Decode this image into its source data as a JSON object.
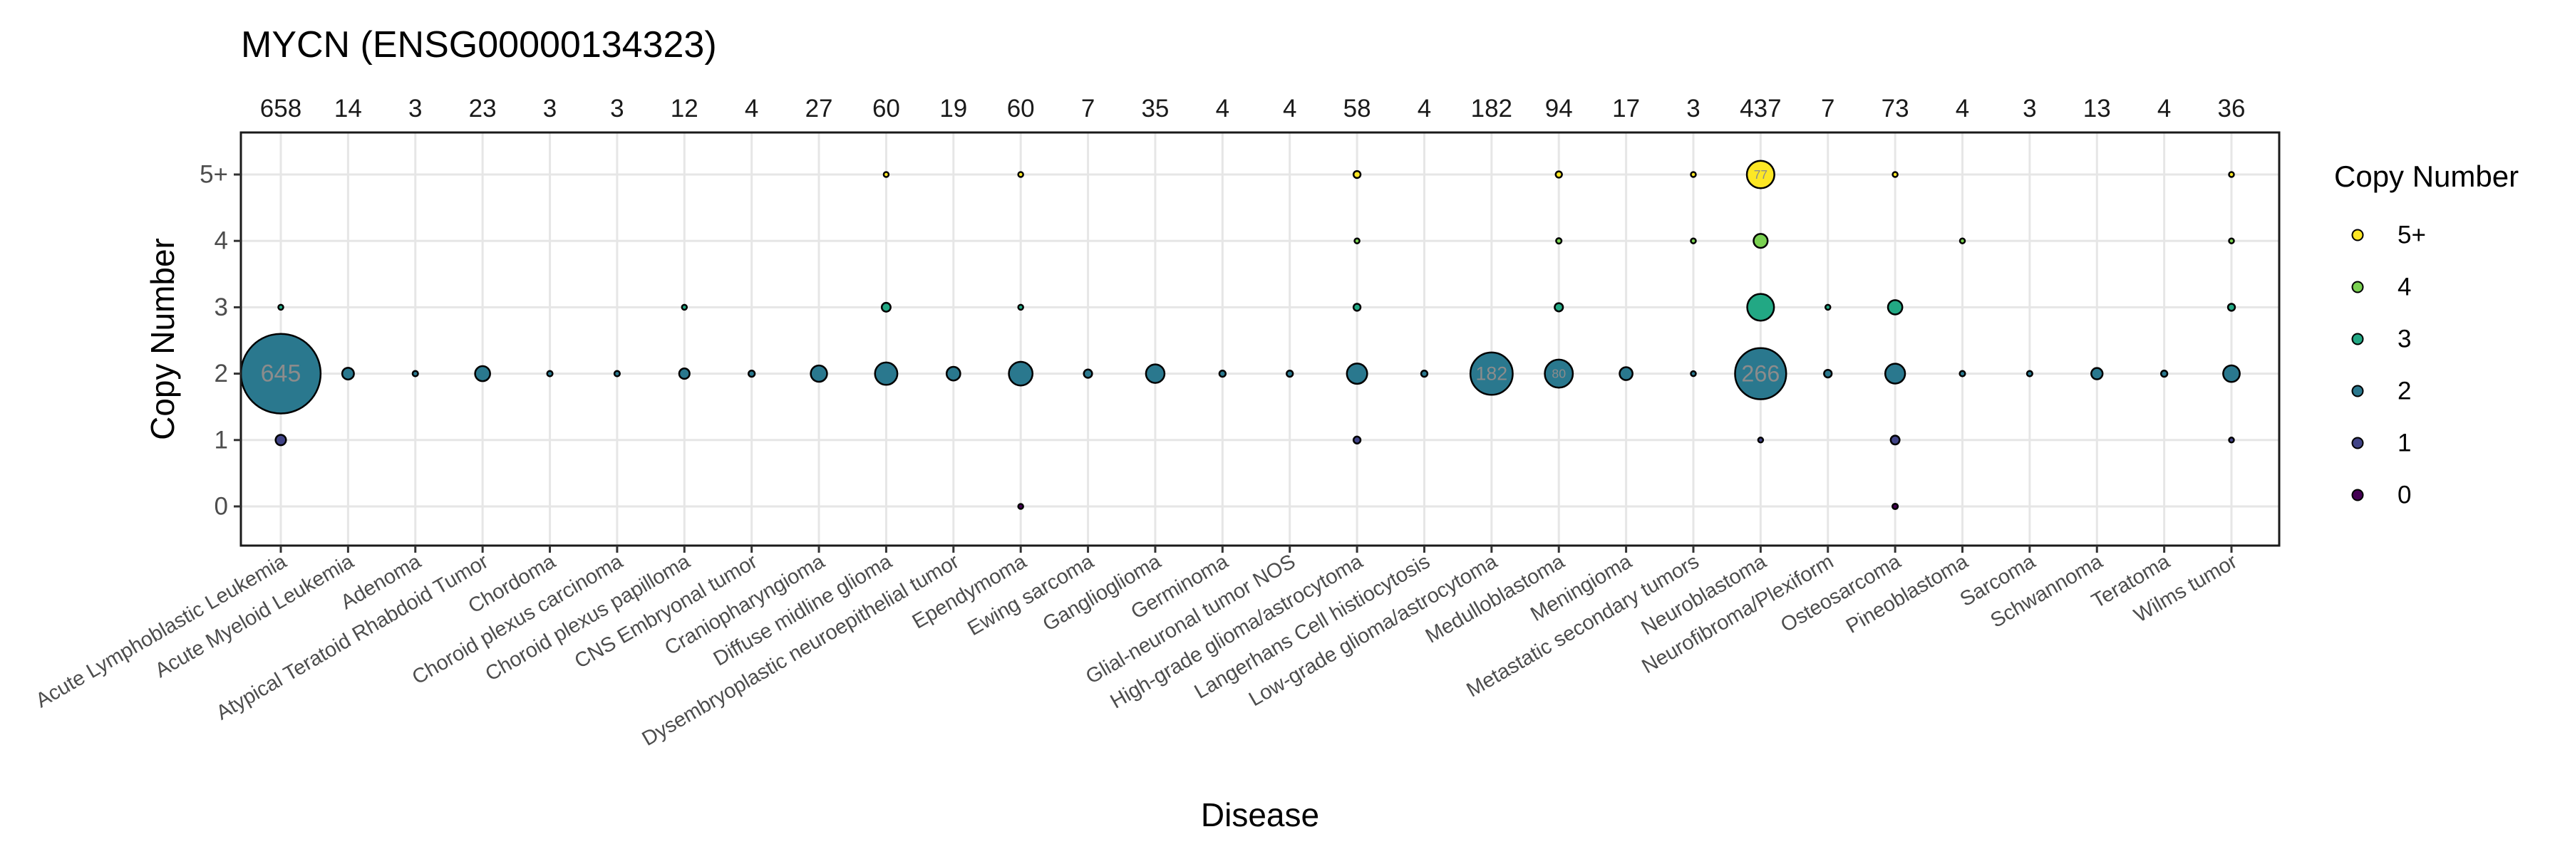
{
  "chart_data": {
    "type": "scatter",
    "title": "MYCN (ENSG00000134323)",
    "xlabel": "Disease",
    "ylabel": "Copy Number",
    "y_categories": [
      "0",
      "1",
      "2",
      "3",
      "4",
      "5+"
    ],
    "grid": true,
    "legend": {
      "title": "Copy Number",
      "placement": "right",
      "items": [
        {
          "label": "5+",
          "color": "#FDE725"
        },
        {
          "label": "4",
          "color": "#7AD151"
        },
        {
          "label": "3",
          "color": "#22A884"
        },
        {
          "label": "2",
          "color": "#2A788E"
        },
        {
          "label": "1",
          "color": "#414487"
        },
        {
          "label": "0",
          "color": "#440154"
        }
      ]
    },
    "categories": [
      "Acute Lymphoblastic Leukemia",
      "Acute Myeloid Leukemia",
      "Adenoma",
      "Atypical Teratoid Rhabdoid Tumor",
      "Chordoma",
      "Choroid plexus carcinoma",
      "Choroid plexus papilloma",
      "CNS Embryonal tumor",
      "Craniopharyngioma",
      "Diffuse midline glioma",
      "Dysembryoplastic neuroepithelial tumor",
      "Ependymoma",
      "Ewing sarcoma",
      "Ganglioglioma",
      "Germinoma",
      "Glial-neuronal tumor NOS",
      "High-grade glioma/astrocytoma",
      "Langerhans Cell histiocytosis",
      "Low-grade glioma/astrocytoma",
      "Medulloblastoma",
      "Meningioma",
      "Metastatic secondary tumors",
      "Neuroblastoma",
      "Neurofibroma/Plexiform",
      "Osteosarcoma",
      "Pineoblastoma",
      "Sarcoma",
      "Schwannoma",
      "Teratoma",
      "Wilms tumor"
    ],
    "totals": [
      658,
      14,
      3,
      23,
      3,
      3,
      12,
      4,
      27,
      60,
      19,
      60,
      7,
      35,
      4,
      4,
      58,
      4,
      182,
      94,
      17,
      3,
      437,
      7,
      73,
      4,
      3,
      13,
      4,
      36
    ],
    "points": [
      {
        "disease": 0,
        "cn": "3",
        "count": 2
      },
      {
        "disease": 0,
        "cn": "2",
        "count": 645,
        "label": "645"
      },
      {
        "disease": 0,
        "cn": "1",
        "count": 11
      },
      {
        "disease": 1,
        "cn": "2",
        "count": 14
      },
      {
        "disease": 2,
        "cn": "2",
        "count": 3
      },
      {
        "disease": 3,
        "cn": "2",
        "count": 23
      },
      {
        "disease": 4,
        "cn": "2",
        "count": 3
      },
      {
        "disease": 5,
        "cn": "2",
        "count": 3
      },
      {
        "disease": 6,
        "cn": "3",
        "count": 1
      },
      {
        "disease": 6,
        "cn": "2",
        "count": 11
      },
      {
        "disease": 7,
        "cn": "2",
        "count": 4
      },
      {
        "disease": 8,
        "cn": "2",
        "count": 27
      },
      {
        "disease": 9,
        "cn": "5+",
        "count": 1
      },
      {
        "disease": 9,
        "cn": "3",
        "count": 8
      },
      {
        "disease": 9,
        "cn": "2",
        "count": 51
      },
      {
        "disease": 10,
        "cn": "2",
        "count": 19
      },
      {
        "disease": 11,
        "cn": "5+",
        "count": 1
      },
      {
        "disease": 11,
        "cn": "3",
        "count": 1
      },
      {
        "disease": 11,
        "cn": "2",
        "count": 57
      },
      {
        "disease": 11,
        "cn": "0",
        "count": 1
      },
      {
        "disease": 12,
        "cn": "2",
        "count": 7
      },
      {
        "disease": 13,
        "cn": "2",
        "count": 35
      },
      {
        "disease": 14,
        "cn": "2",
        "count": 4
      },
      {
        "disease": 15,
        "cn": "2",
        "count": 4
      },
      {
        "disease": 16,
        "cn": "5+",
        "count": 5
      },
      {
        "disease": 16,
        "cn": "4",
        "count": 1
      },
      {
        "disease": 16,
        "cn": "3",
        "count": 5
      },
      {
        "disease": 16,
        "cn": "2",
        "count": 42
      },
      {
        "disease": 16,
        "cn": "1",
        "count": 5
      },
      {
        "disease": 17,
        "cn": "2",
        "count": 4
      },
      {
        "disease": 18,
        "cn": "2",
        "count": 182,
        "label": "182"
      },
      {
        "disease": 19,
        "cn": "5+",
        "count": 4
      },
      {
        "disease": 19,
        "cn": "4",
        "count": 3
      },
      {
        "disease": 19,
        "cn": "3",
        "count": 7
      },
      {
        "disease": 19,
        "cn": "2",
        "count": 80,
        "label": "80"
      },
      {
        "disease": 20,
        "cn": "2",
        "count": 17
      },
      {
        "disease": 21,
        "cn": "5+",
        "count": 1
      },
      {
        "disease": 21,
        "cn": "4",
        "count": 1
      },
      {
        "disease": 21,
        "cn": "2",
        "count": 1
      },
      {
        "disease": 22,
        "cn": "5+",
        "count": 77,
        "label": "77"
      },
      {
        "disease": 22,
        "cn": "4",
        "count": 20
      },
      {
        "disease": 22,
        "cn": "3",
        "count": 73
      },
      {
        "disease": 22,
        "cn": "2",
        "count": 266,
        "label": "266"
      },
      {
        "disease": 22,
        "cn": "1",
        "count": 1
      },
      {
        "disease": 23,
        "cn": "3",
        "count": 1
      },
      {
        "disease": 23,
        "cn": "2",
        "count": 6
      },
      {
        "disease": 24,
        "cn": "5+",
        "count": 1
      },
      {
        "disease": 24,
        "cn": "3",
        "count": 21
      },
      {
        "disease": 24,
        "cn": "2",
        "count": 40
      },
      {
        "disease": 24,
        "cn": "1",
        "count": 8
      },
      {
        "disease": 24,
        "cn": "0",
        "count": 3
      },
      {
        "disease": 25,
        "cn": "4",
        "count": 1
      },
      {
        "disease": 25,
        "cn": "2",
        "count": 3
      },
      {
        "disease": 26,
        "cn": "2",
        "count": 3
      },
      {
        "disease": 27,
        "cn": "2",
        "count": 13
      },
      {
        "disease": 28,
        "cn": "2",
        "count": 4
      },
      {
        "disease": 29,
        "cn": "5+",
        "count": 1
      },
      {
        "disease": 29,
        "cn": "4",
        "count": 1
      },
      {
        "disease": 29,
        "cn": "3",
        "count": 5
      },
      {
        "disease": 29,
        "cn": "2",
        "count": 28
      },
      {
        "disease": 29,
        "cn": "1",
        "count": 1
      }
    ]
  }
}
